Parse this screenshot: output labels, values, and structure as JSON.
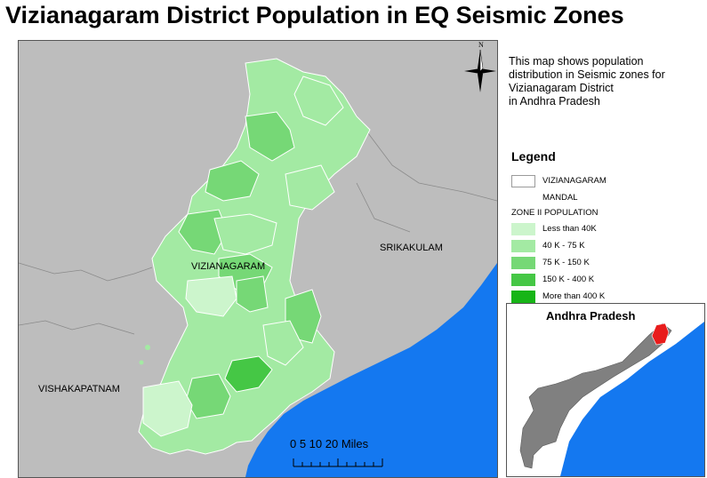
{
  "title": "Vizianagaram District Population in EQ Seismic Zones",
  "description": [
    "This map shows population",
    "distribution in Seismic zones for",
    "Vizianagaram District",
    "in Andhra Pradesh"
  ],
  "north_arrow": {
    "label": "N"
  },
  "map_labels": {
    "vizianagaram": "VIZIANAGARAM",
    "srikakulam": "SRIKAKULAM",
    "vishakapatnam": "VISHAKAPATNAM"
  },
  "legend": {
    "title": "Legend",
    "boundary_line1": "VIZIANAGARAM",
    "boundary_line2": "MANDAL",
    "group_label": "ZONE II POPULATION",
    "classes": [
      {
        "label": "Less than 40K",
        "color": "#ccf5cc"
      },
      {
        "label": "40 K - 75 K",
        "color": "#a3eaa3"
      },
      {
        "label": "75 K - 150 K",
        "color": "#76d876"
      },
      {
        "label": "150 K - 400 K",
        "color": "#45c745"
      },
      {
        "label": "More than 400 K",
        "color": "#17b517"
      }
    ]
  },
  "colors": {
    "land": "#bdbdbd",
    "sea": "#1478f0",
    "state": "#808080",
    "highlight": "#e81c1c"
  },
  "inset": {
    "title": "Andhra Pradesh"
  },
  "scale_bar": {
    "labels": "0    5   10        20 Miles"
  }
}
